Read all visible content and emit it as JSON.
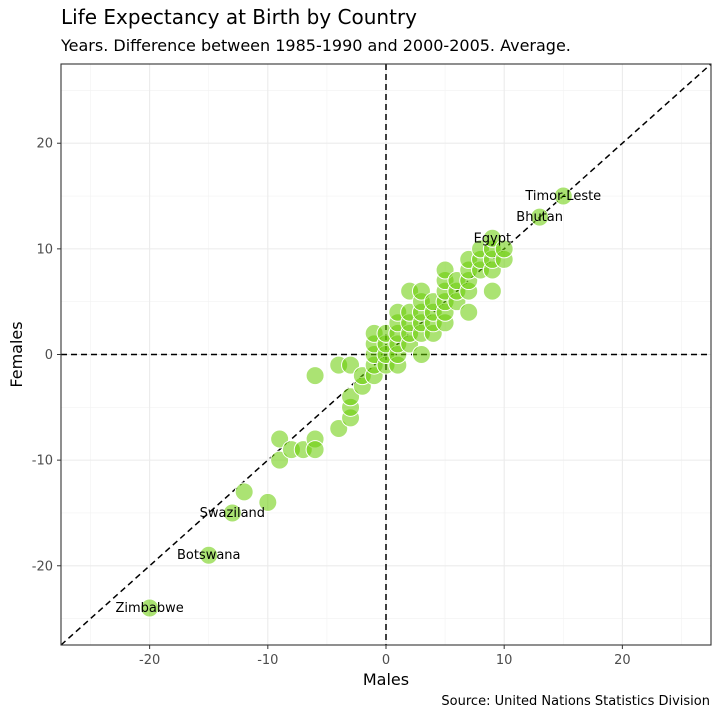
{
  "chart_data": {
    "type": "scatter",
    "title": "Life Expectancy at Birth by Country",
    "subtitle": "Years. Difference between 1985-1990 and 2000-2005. Average.",
    "caption": "Source: United Nations Statistics Division",
    "xlabel": "Males",
    "ylabel": "Females",
    "xlim": [
      -27.5,
      27.5
    ],
    "ylim": [
      -27.5,
      27.5
    ],
    "xticks": [
      -20,
      -10,
      0,
      10,
      20
    ],
    "yticks": [
      -20,
      -10,
      0,
      10,
      20
    ],
    "grid": true,
    "point_color": "#66CC00",
    "reference_lines": [
      "x = 0",
      "y = 0",
      "y = x"
    ],
    "labels": [
      {
        "text": "Timor-Leste",
        "x": 15,
        "y": 15
      },
      {
        "text": "Bhutan",
        "x": 13,
        "y": 13
      },
      {
        "text": "Egypt",
        "x": 9,
        "y": 11
      },
      {
        "text": "Swaziland",
        "x": -13,
        "y": -15
      },
      {
        "text": "Botswana",
        "x": -15,
        "y": -19
      },
      {
        "text": "Zimbabwe",
        "x": -20,
        "y": -24
      }
    ],
    "points": [
      [
        -20,
        -24
      ],
      [
        -15,
        -19
      ],
      [
        -13,
        -15
      ],
      [
        -12,
        -13
      ],
      [
        -10,
        -14
      ],
      [
        -9,
        -8
      ],
      [
        -9,
        -10
      ],
      [
        -8,
        -9
      ],
      [
        -7,
        -9
      ],
      [
        -6,
        -8
      ],
      [
        -6,
        -9
      ],
      [
        -6,
        -2
      ],
      [
        -4,
        -7
      ],
      [
        -4,
        -1
      ],
      [
        -3,
        -6
      ],
      [
        -3,
        -5
      ],
      [
        -3,
        -4
      ],
      [
        -3,
        -1
      ],
      [
        -2,
        -3
      ],
      [
        -2,
        -2
      ],
      [
        -1,
        -2
      ],
      [
        -1,
        -1
      ],
      [
        -1,
        0
      ],
      [
        -1,
        1
      ],
      [
        -1,
        2
      ],
      [
        0,
        -1
      ],
      [
        0,
        0
      ],
      [
        0,
        1
      ],
      [
        0,
        2
      ],
      [
        1,
        -1
      ],
      [
        1,
        0
      ],
      [
        1,
        1
      ],
      [
        1,
        2
      ],
      [
        1,
        3
      ],
      [
        1,
        4
      ],
      [
        2,
        1
      ],
      [
        2,
        2
      ],
      [
        2,
        3
      ],
      [
        2,
        4
      ],
      [
        2,
        6
      ],
      [
        3,
        0
      ],
      [
        3,
        2
      ],
      [
        3,
        3
      ],
      [
        3,
        4
      ],
      [
        3,
        5
      ],
      [
        3,
        6
      ],
      [
        4,
        2
      ],
      [
        4,
        3
      ],
      [
        4,
        4
      ],
      [
        4,
        5
      ],
      [
        5,
        3
      ],
      [
        5,
        4
      ],
      [
        5,
        5
      ],
      [
        5,
        6
      ],
      [
        5,
        7
      ],
      [
        5,
        8
      ],
      [
        6,
        5
      ],
      [
        6,
        6
      ],
      [
        6,
        7
      ],
      [
        7,
        4
      ],
      [
        7,
        6
      ],
      [
        7,
        7
      ],
      [
        7,
        8
      ],
      [
        7,
        9
      ],
      [
        8,
        8
      ],
      [
        8,
        9
      ],
      [
        8,
        10
      ],
      [
        9,
        6
      ],
      [
        9,
        8
      ],
      [
        9,
        9
      ],
      [
        9,
        10
      ],
      [
        9,
        11
      ],
      [
        10,
        9
      ],
      [
        10,
        10
      ],
      [
        13,
        13
      ],
      [
        15,
        15
      ]
    ]
  }
}
